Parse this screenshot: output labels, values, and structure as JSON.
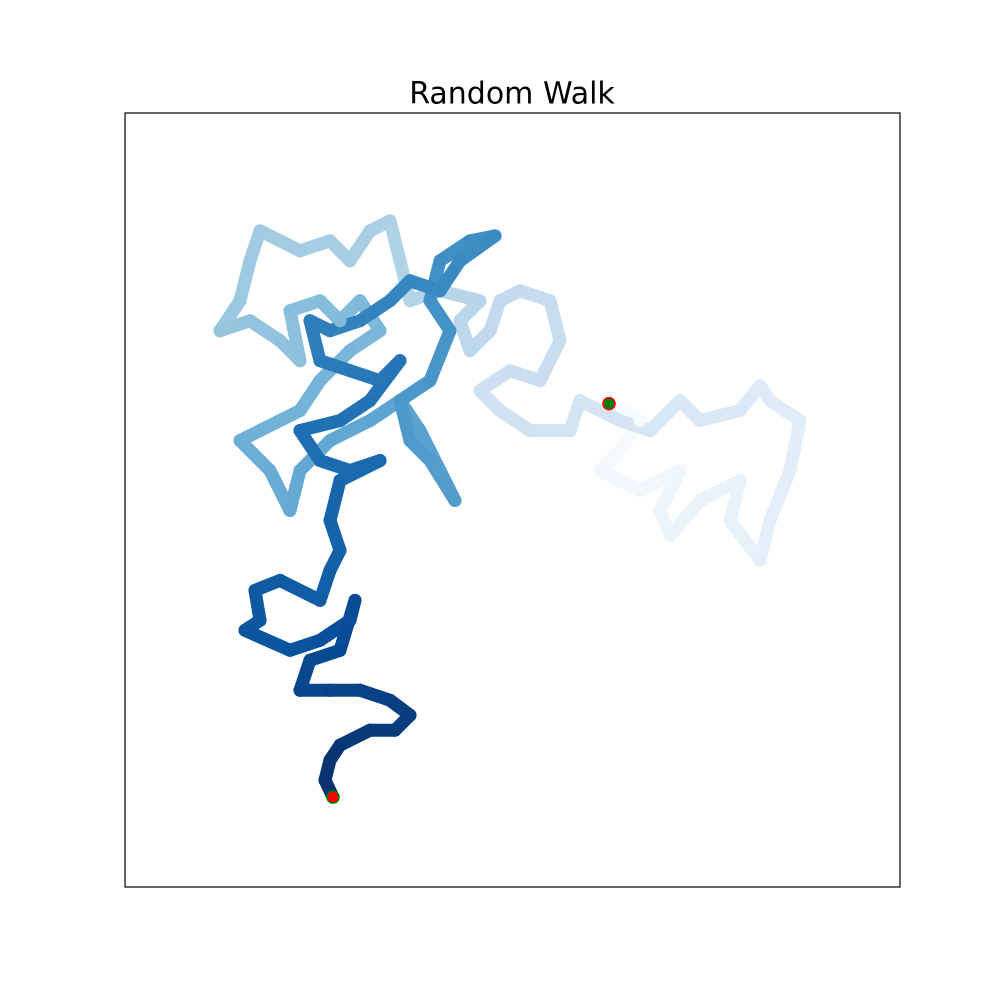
{
  "chart_data": {
    "type": "scatter",
    "title": "Random Walk",
    "x": [
      484,
      515,
      495,
      475,
      515,
      555,
      535,
      545,
      575,
      615,
      605,
      635,
      645,
      665,
      675,
      645,
      635,
      615,
      575,
      555,
      525,
      495,
      455,
      445,
      405,
      375,
      355,
      385,
      415,
      435,
      425,
      395,
      375,
      365,
      345,
      335,
      355,
      315,
      285,
      275,
      265,
      245,
      225,
      205,
      175,
      135,
      125,
      115,
      95,
      125,
      155,
      175,
      165,
      195,
      215,
      235,
      255,
      225,
      195,
      175,
      135,
      115,
      145,
      165,
      175,
      205,
      245,
      275,
      295,
      315,
      330,
      305,
      285,
      275,
      305,
      325,
      305,
      315,
      345,
      370,
      335,
      315,
      285,
      265,
      235,
      205,
      185,
      195,
      225,
      255,
      275,
      245,
      215,
      175,
      195,
      225,
      255,
      215,
      205,
      215,
      205,
      195,
      155,
      130,
      135,
      120,
      165,
      195,
      225,
      230,
      215,
      185,
      175,
      205,
      235,
      265,
      285,
      270,
      245,
      215,
      205,
      200,
      208
    ],
    "y": [
      484,
      467,
      437,
      417,
      397,
      417,
      377,
      352,
      387,
      407,
      367,
      327,
      367,
      417,
      467,
      487,
      502,
      477,
      467,
      487,
      457,
      467,
      487,
      457,
      457,
      477,
      497,
      517,
      507,
      547,
      587,
      597,
      587,
      557,
      537,
      567,
      587,
      597,
      587,
      627,
      667,
      657,
      627,
      647,
      637,
      657,
      627,
      587,
      557,
      567,
      547,
      527,
      577,
      587,
      567,
      587,
      557,
      537,
      507,
      477,
      457,
      447,
      417,
      377,
      417,
      447,
      467,
      487,
      457,
      417,
      387,
      427,
      447,
      487,
      507,
      557,
      587,
      627,
      647,
      652,
      627,
      597,
      607,
      587,
      567,
      557,
      567,
      527,
      517,
      507,
      527,
      487,
      467,
      457,
      427,
      417,
      427,
      407,
      367,
      337,
      317,
      287,
      307,
      297,
      267,
      257,
      237,
      247,
      267,
      287,
      237,
      227,
      197,
      197,
      197,
      187,
      172,
      157,
      157,
      142,
      127,
      107,
      90
    ],
    "xlim": [
      0,
      775
    ],
    "ylim": [
      0,
      775
    ],
    "colormap": [
      "#f7fbff",
      "#deebf7",
      "#c6dbef",
      "#9ecae1",
      "#6baed6",
      "#4292c6",
      "#2171b5",
      "#08519c",
      "#08306b"
    ],
    "start_color": "#008000",
    "start_edge_color": "#ff0000",
    "end_color": "#ff0000",
    "end_edge_color": "#008000"
  }
}
